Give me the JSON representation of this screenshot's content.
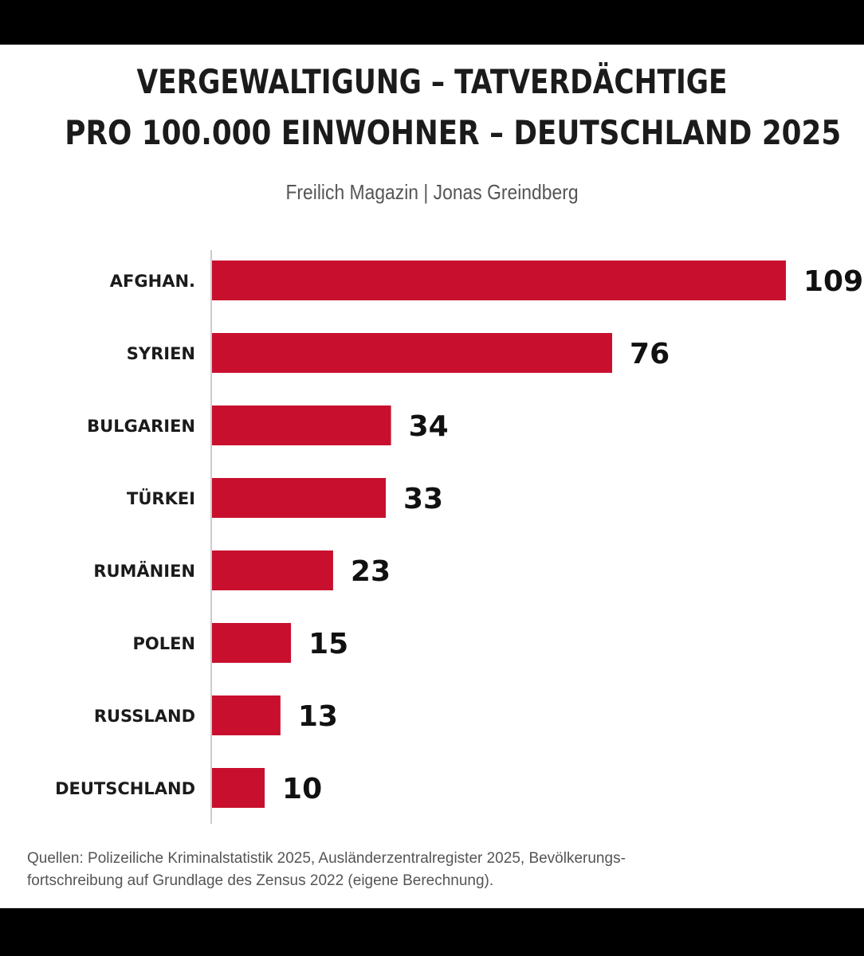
{
  "header": {
    "title_line1": "VERGEWALTIGUNG – TATVERDÄCHTIGE",
    "title_line2": "PRO 100.000 EINWOHNER – DEUTSCHLAND 2025",
    "subtitle": "Freilich Magazin | Jonas Greindberg"
  },
  "footer": {
    "source": "Quellen: Polizeiliche Kriminalstatistik 2025, Ausländerzentralregister 2025, Bevölkerungs-\nfortschreibung auf Grundlage des Zensus 2022 (eigene Berechnung)."
  },
  "colors": {
    "bar": "#c8102e",
    "axis": "#cccccc"
  },
  "chart_data": {
    "type": "bar",
    "orientation": "horizontal",
    "title": "VERGEWALTIGUNG – TATVERDÄCHTIGE PRO 100.000 EINWOHNER – DEUTSCHLAND 2025",
    "subtitle": "Freilich Magazin | Jonas Greindberg",
    "categories": [
      "AFGHAN.",
      "SYRIEN",
      "BULGARIEN",
      "TÜRKEI",
      "RUMÄNIEN",
      "POLEN",
      "RUSSLAND",
      "DEUTSCHLAND"
    ],
    "values": [
      109,
      76,
      34,
      33,
      23,
      15,
      13,
      10
    ],
    "xlim": [
      0,
      109
    ],
    "grid": false,
    "data_labels": true
  }
}
